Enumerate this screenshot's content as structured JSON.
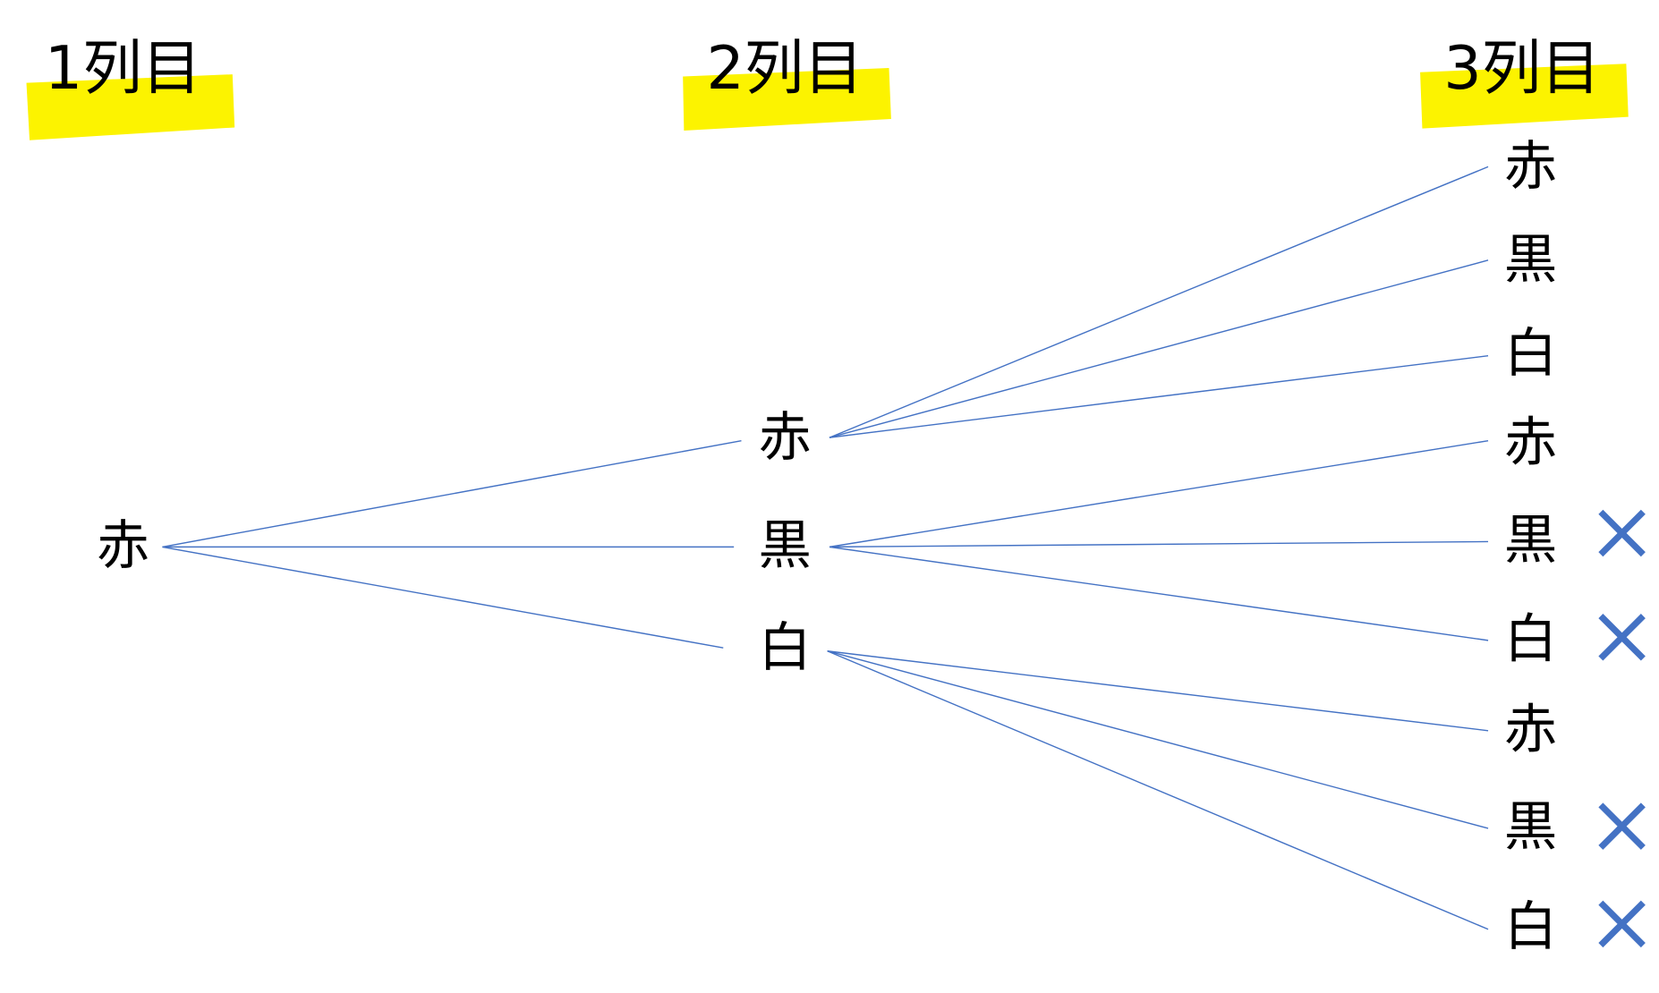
{
  "headers": [
    "1列目",
    "2列目",
    "3列目"
  ],
  "nodes": {
    "level1": [
      "赤"
    ],
    "level2": [
      "赤",
      "黒",
      "白"
    ],
    "level3": [
      "赤",
      "黒",
      "白",
      "赤",
      "黒",
      "白",
      "赤",
      "黒",
      "白"
    ]
  }
}
